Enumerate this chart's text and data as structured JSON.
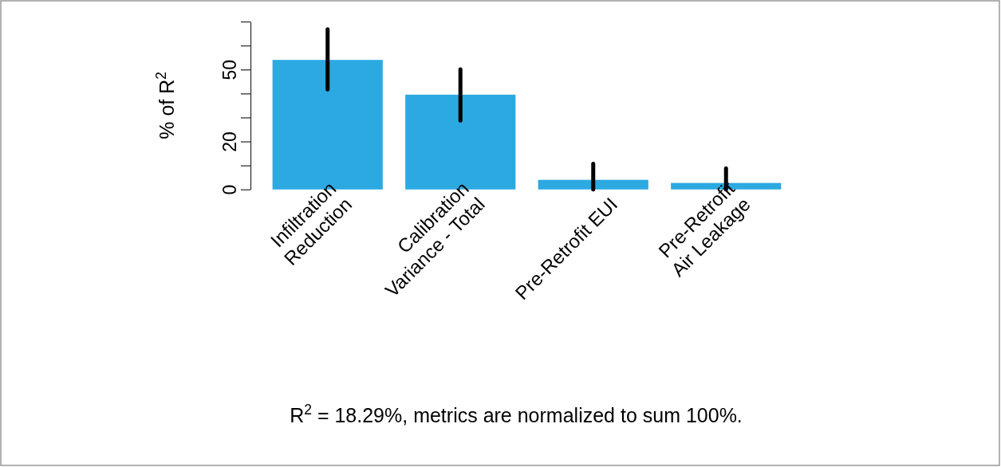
{
  "chart_data": {
    "type": "bar",
    "ylabel": "% of R$^{2}$",
    "categories": [
      "Infiltration\nReduction",
      "Calibration\nVariance - Total",
      "Pre-Retrofit EUI",
      "Pre-Retrofit\nAir Leakage"
    ],
    "values": [
      54,
      39.5,
      4,
      2.7
    ],
    "errors": [
      [
        41.7,
        66.8
      ],
      [
        28.7,
        50.1
      ],
      [
        0,
        10.7
      ],
      [
        0,
        8.8
      ]
    ],
    "color": "#2ca9e1",
    "ylim": [
      0,
      70
    ],
    "yticks": [
      0,
      {
        "value": 10,
        "label": null
      },
      20,
      {
        "value": 30,
        "label": null
      },
      {
        "value": 40,
        "label": null
      },
      50,
      {
        "value": 60,
        "label": null
      },
      {
        "value": 70,
        "label": null
      }
    ],
    "grid": false,
    "annotations": [
      "R$^{2}$ = 18.29%, metrics are normalized to sum 100%."
    ]
  }
}
